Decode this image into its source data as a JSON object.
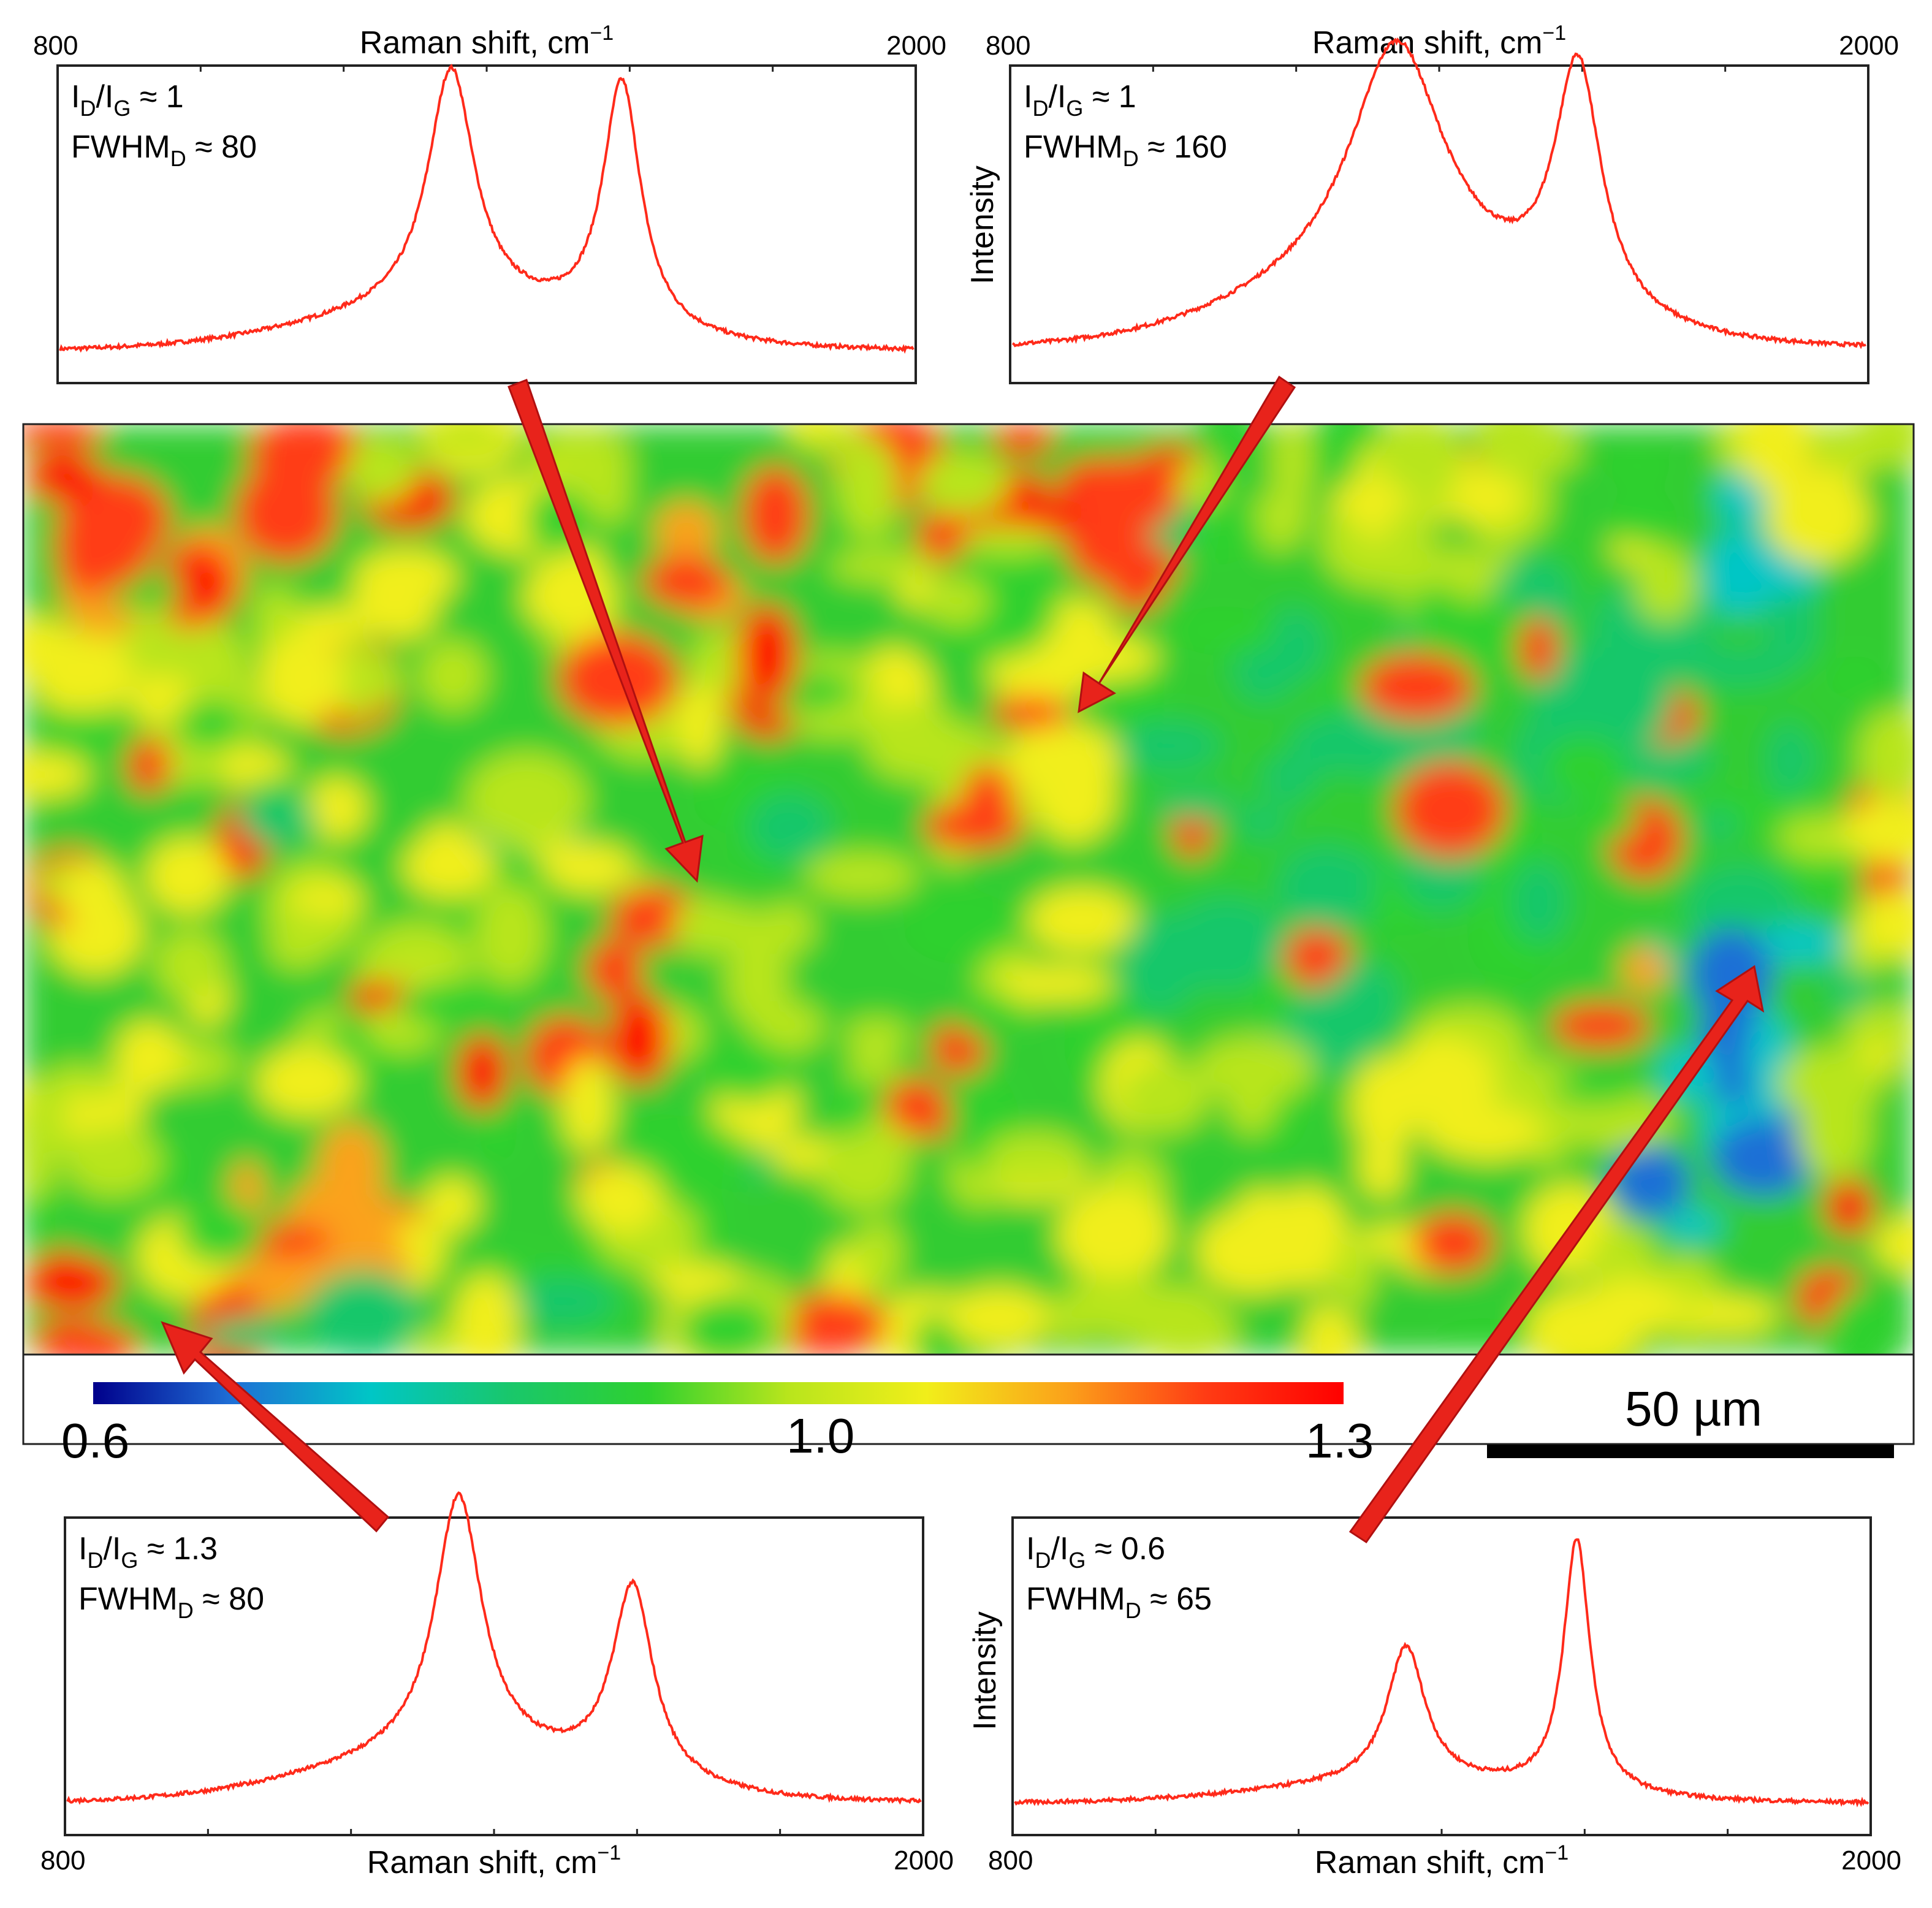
{
  "colors": {
    "spectrum": "#ff2a1a",
    "arrow_fill": "#e8231b",
    "arrow_stroke": "#b01010",
    "frame": "#222222",
    "scale_bar": "#000000",
    "colormap": [
      "#00008b",
      "#1f6fd6",
      "#00c6c6",
      "#19c76b",
      "#2fd12f",
      "#b8e51c",
      "#f1ee1a",
      "#fba21a",
      "#ff3c14",
      "#ff0000"
    ]
  },
  "x_axis_title": "Raman shift, cm",
  "x_axis_title_sup": "−1",
  "y_axis_title": "Intensity",
  "spectra": [
    {
      "id": "top-left",
      "xlabel_position": "top",
      "x_tick_labels": [
        "800",
        "2000"
      ],
      "show_ylabel": false,
      "ratio_label": "I",
      "ratio_sub_d": "D",
      "ratio_sub_g": "G",
      "ratio_value": " ≈ 1",
      "fwhm_label": "FWHM",
      "fwhm_sub": "D",
      "fwhm_value": " ≈ 80",
      "chart_series": {
        "D_center": 1350,
        "G_center": 1590,
        "D_height": 0.86,
        "G_height": 0.88,
        "D_fwhm": 80,
        "G_fwhm": 65,
        "baseline": 0.1,
        "wing": 0.12
      }
    },
    {
      "id": "top-right",
      "xlabel_position": "top",
      "x_tick_labels": [
        "800",
        "2000"
      ],
      "show_ylabel": true,
      "ratio_label": "I",
      "ratio_sub_d": "D",
      "ratio_sub_g": "G",
      "ratio_value": " ≈ 1",
      "fwhm_label": "FWHM",
      "fwhm_sub": "D",
      "fwhm_value": " ≈ 160",
      "chart_series": {
        "D_center": 1340,
        "G_center": 1595,
        "D_height": 0.86,
        "G_height": 0.88,
        "D_fwhm": 160,
        "G_fwhm": 80,
        "baseline": 0.1,
        "wing": 0.2
      }
    },
    {
      "id": "bottom-left",
      "xlabel_position": "bottom",
      "x_tick_labels": [
        "800",
        "2000"
      ],
      "show_ylabel": false,
      "ratio_label": "I",
      "ratio_sub_d": "D",
      "ratio_sub_g": "G",
      "ratio_value": " ≈ 1.3",
      "fwhm_label": "FWHM",
      "fwhm_sub": "D",
      "fwhm_value": " ≈ 80",
      "chart_series": {
        "D_center": 1350,
        "G_center": 1595,
        "D_height": 0.92,
        "G_height": 0.71,
        "D_fwhm": 80,
        "G_fwhm": 70,
        "baseline": 0.1,
        "wing": 0.14
      }
    },
    {
      "id": "bottom-right",
      "xlabel_position": "bottom",
      "x_tick_labels": [
        "800",
        "2000"
      ],
      "show_ylabel": true,
      "ratio_label": "I",
      "ratio_sub_d": "D",
      "ratio_sub_g": "G",
      "ratio_value": " ≈ 0.6",
      "fwhm_label": "FWHM",
      "fwhm_sub": "D",
      "fwhm_value": " ≈ 65",
      "chart_series": {
        "D_center": 1350,
        "G_center": 1590,
        "D_height": 0.53,
        "G_height": 0.9,
        "D_fwhm": 65,
        "G_fwhm": 45,
        "baseline": 0.1,
        "wing": 0.06
      }
    }
  ],
  "map": {
    "colorbar_labels": [
      "0.6",
      "1.0",
      "1.3"
    ],
    "scale_bar_label": "50 µm"
  },
  "chart_data": [
    {
      "type": "line",
      "name": "spectrum-top-left",
      "x_range": [
        800,
        2000
      ],
      "xlabel": "Raman shift, cm−1",
      "ylabel": "",
      "I_D/I_G": 1,
      "FWHM_D": 80,
      "peaks": [
        {
          "band": "D",
          "x": 1350
        },
        {
          "band": "G",
          "x": 1590
        }
      ]
    },
    {
      "type": "line",
      "name": "spectrum-top-right",
      "x_range": [
        800,
        2000
      ],
      "xlabel": "Raman shift, cm−1",
      "ylabel": "Intensity",
      "I_D/I_G": 1,
      "FWHM_D": 160,
      "peaks": [
        {
          "band": "D",
          "x": 1340
        },
        {
          "band": "G",
          "x": 1595
        }
      ]
    },
    {
      "type": "line",
      "name": "spectrum-bottom-left",
      "x_range": [
        800,
        2000
      ],
      "xlabel": "Raman shift, cm−1",
      "ylabel": "",
      "I_D/I_G": 1.3,
      "FWHM_D": 80,
      "peaks": [
        {
          "band": "D",
          "x": 1350
        },
        {
          "band": "G",
          "x": 1595
        }
      ]
    },
    {
      "type": "line",
      "name": "spectrum-bottom-right",
      "x_range": [
        800,
        2000
      ],
      "xlabel": "Raman shift, cm−1",
      "ylabel": "Intensity",
      "I_D/I_G": 0.6,
      "FWHM_D": 65,
      "peaks": [
        {
          "band": "D",
          "x": 1350
        },
        {
          "band": "G",
          "x": 1590
        }
      ]
    },
    {
      "type": "heatmap",
      "quantity": "I_D/I_G",
      "color_range": [
        0.6,
        1.3
      ],
      "colorbar_ticks": [
        0.6,
        1.0,
        1.3
      ],
      "scale_bar": "50 µm",
      "colormap": "jet"
    }
  ]
}
